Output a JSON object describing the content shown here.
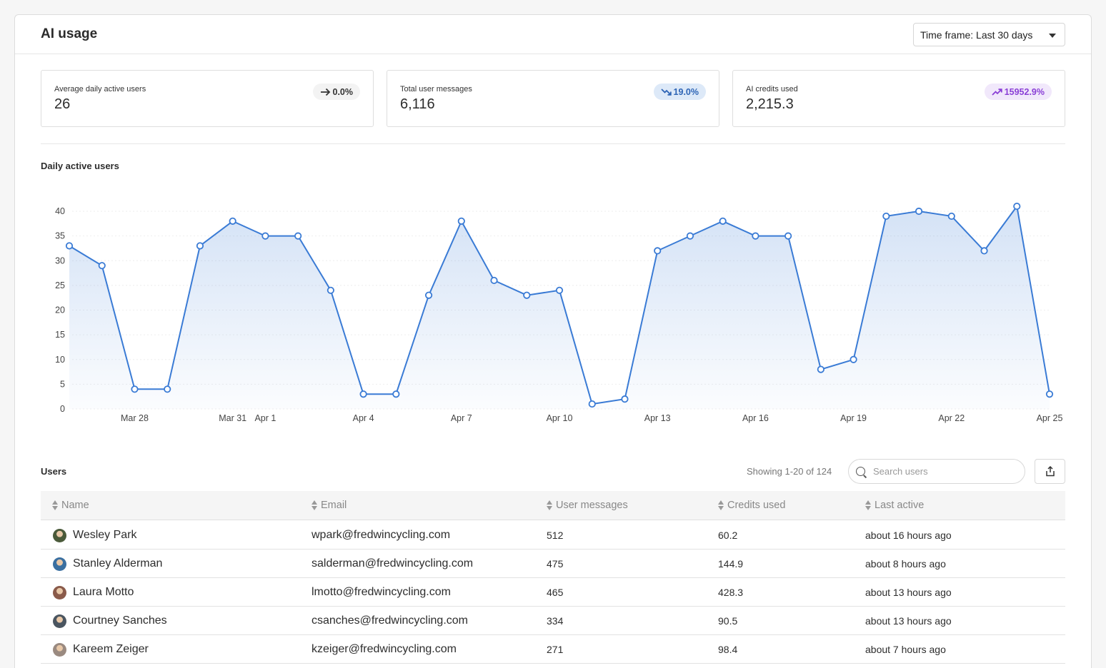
{
  "header": {
    "title": "AI usage",
    "timeframe_label": "Time frame: Last 30 days"
  },
  "stats": [
    {
      "label": "Average daily active users",
      "value": "26",
      "change": "0.0%",
      "trend": "flat",
      "icon": "arrow-right-icon"
    },
    {
      "label": "Total user messages",
      "value": "6,116",
      "change": "19.0%",
      "trend": "down",
      "icon": "trending-down-icon"
    },
    {
      "label": "AI credits used",
      "value": "2,215.3",
      "change": "15952.9%",
      "trend": "up",
      "icon": "trending-up-icon"
    }
  ],
  "chart": {
    "title": "Daily active users"
  },
  "chart_data": {
    "type": "line",
    "title": "Daily active users",
    "xlabel": "",
    "ylabel": "",
    "x": [
      "Mar 26",
      "Mar 27",
      "Mar 28",
      "Mar 29",
      "Mar 30",
      "Mar 31",
      "Apr 1",
      "Apr 2",
      "Apr 3",
      "Apr 4",
      "Apr 5",
      "Apr 6",
      "Apr 7",
      "Apr 8",
      "Apr 9",
      "Apr 10",
      "Apr 11",
      "Apr 12",
      "Apr 13",
      "Apr 14",
      "Apr 15",
      "Apr 16",
      "Apr 17",
      "Apr 18",
      "Apr 19",
      "Apr 20",
      "Apr 21",
      "Apr 22",
      "Apr 23",
      "Apr 24",
      "Apr 25"
    ],
    "series": [
      {
        "values": [
          33,
          29,
          4,
          4,
          33,
          38,
          35,
          35,
          24,
          3,
          3,
          23,
          38,
          26,
          23,
          24,
          1,
          2,
          32,
          35,
          38,
          35,
          35,
          8,
          10,
          39,
          40,
          39,
          32,
          41,
          3
        ]
      }
    ],
    "tick_labels": [
      "Mar 28",
      "Mar 31",
      "Apr 1",
      "Apr 4",
      "Apr 7",
      "Apr 10",
      "Apr 13",
      "Apr 16",
      "Apr 19",
      "Apr 22",
      "Apr 25"
    ],
    "y_ticks": [
      0,
      5,
      10,
      15,
      20,
      25,
      30,
      35,
      40
    ],
    "ylim": [
      0,
      40
    ],
    "grid": true,
    "color": "#3a7bd5"
  },
  "users": {
    "title": "Users",
    "showing": "Showing 1-20 of 124",
    "search_placeholder": "Search users",
    "columns": [
      "Name",
      "Email",
      "User messages",
      "Credits used",
      "Last active"
    ],
    "rows": [
      {
        "name": "Wesley Park",
        "email": "wpark@fredwincycling.com",
        "messages": "512",
        "credits": "60.2",
        "last_active": "about 16 hours ago",
        "avatar_color": "#4a5a3a"
      },
      {
        "name": "Stanley Alderman",
        "email": "salderman@fredwincycling.com",
        "messages": "475",
        "credits": "144.9",
        "last_active": "about 8 hours ago",
        "avatar_color": "#3a6fa0"
      },
      {
        "name": "Laura Motto",
        "email": "lmotto@fredwincycling.com",
        "messages": "465",
        "credits": "428.3",
        "last_active": "about 13 hours ago",
        "avatar_color": "#8a5a4a"
      },
      {
        "name": "Courtney Sanches",
        "email": "csanches@fredwincycling.com",
        "messages": "334",
        "credits": "90.5",
        "last_active": "about 13 hours ago",
        "avatar_color": "#4a5560"
      },
      {
        "name": "Kareem Zeiger",
        "email": "kzeiger@fredwincycling.com",
        "messages": "271",
        "credits": "98.4",
        "last_active": "about 7 hours ago",
        "avatar_color": "#9a8a80"
      }
    ]
  }
}
